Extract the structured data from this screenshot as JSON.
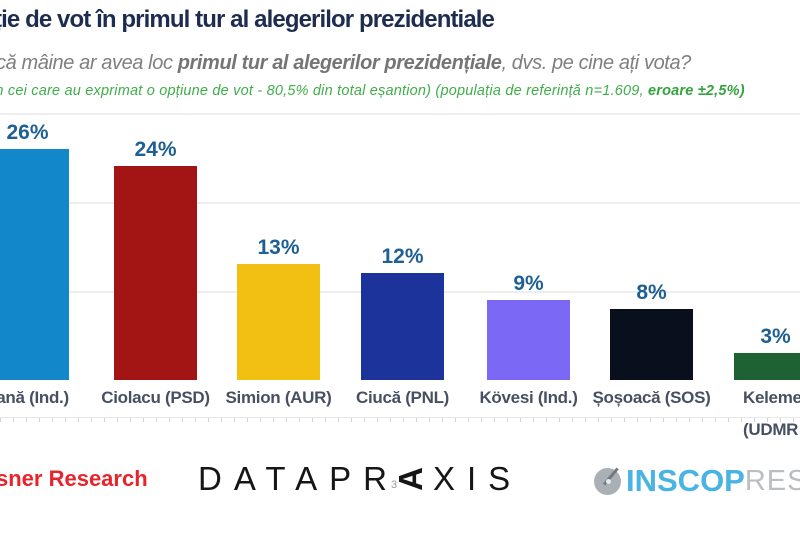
{
  "header": {
    "title": "ție de vot în primul tur al alegerilor prezidentiale",
    "subtitle_prefix": "că mâine ar avea loc ",
    "subtitle_bold": "primul tur al alegerilor prezidențiale",
    "subtitle_suffix": ", dvs. pe cine ați vota?",
    "note_regular": "in cei care au exprimat o opțiune de vot  - 80,5% din total eșantion) (populația de referință n=1.609, ",
    "note_bold": "eroare ±2,5%)"
  },
  "chart_data": {
    "type": "bar",
    "title": "ție de vot în primul tur al alegerilor prezidentiale",
    "question": "că mâine ar avea loc primul tur al alegerilor prezidențiale, dvs. pe cine ați vota?",
    "xlabel": "",
    "ylabel": "",
    "ylim": [
      0,
      30
    ],
    "grid": true,
    "gridlines_pct": [
      10,
      20,
      30
    ],
    "legend": false,
    "value_label_color": "#1e6094",
    "category_label_color": "#475063",
    "categories": [
      "oană (Ind.)",
      "Ciolacu (PSD)",
      "Simion (AUR)",
      "Ciucă (PNL)",
      "Kövesi (Ind.)",
      "Șoșoacă (SOS)",
      "Keleme (UDMR"
    ],
    "values": [
      26,
      24,
      13,
      12,
      9,
      8,
      3
    ],
    "bars": [
      {
        "label": "oană (Ind.)",
        "label_line2": "",
        "value_pct": 26,
        "value_label": "26%",
        "color": "#1287c9"
      },
      {
        "label": "Ciolacu (PSD)",
        "label_line2": "",
        "value_pct": 24,
        "value_label": "24%",
        "color": "#a31414"
      },
      {
        "label": "Simion (AUR)",
        "label_line2": "",
        "value_pct": 13,
        "value_label": "13%",
        "color": "#f2c012"
      },
      {
        "label": "Ciucă (PNL)",
        "label_line2": "",
        "value_pct": 12,
        "value_label": "12%",
        "color": "#1b339b"
      },
      {
        "label": "Kövesi (Ind.)",
        "label_line2": "",
        "value_pct": 9,
        "value_label": "9%",
        "color": "#7b68f5"
      },
      {
        "label": "Șoșoacă (SOS)",
        "label_line2": "",
        "value_pct": 8,
        "value_label": "8%",
        "color": "#0a0f1d"
      },
      {
        "label": "Keleme",
        "label_line2": "(UDMR",
        "value_pct": 3,
        "value_label": "3%",
        "color": "#1e6233"
      }
    ]
  },
  "footer": {
    "left_logo_text": "sner Research",
    "datapraxis": {
      "pre": "DATAPR",
      "mark": "3",
      "stylized_a": "A",
      "post": "XIS"
    },
    "inscop": {
      "name": "INSCOP",
      "suffix": "RESEARCH"
    }
  }
}
